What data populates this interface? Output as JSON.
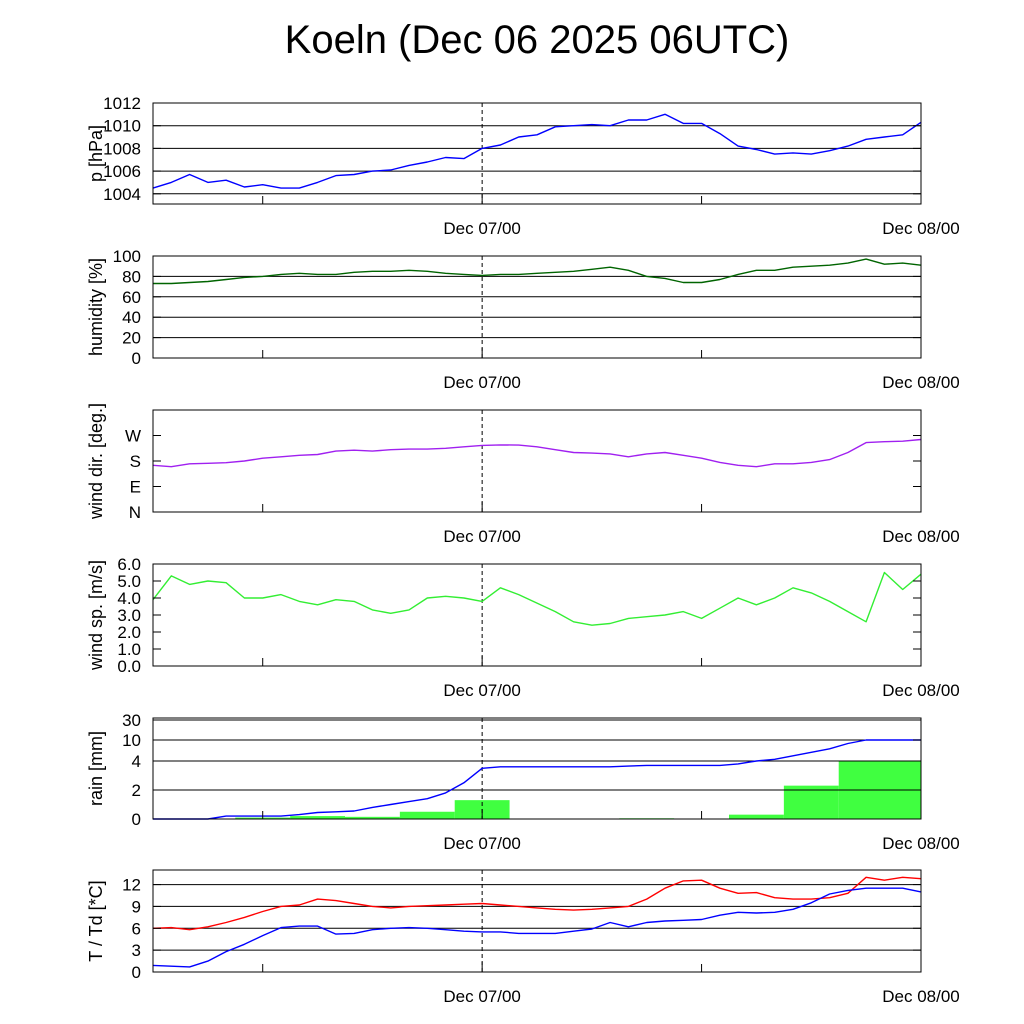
{
  "chart_data": {
    "type": "line",
    "title": "Koeln (Dec 06 2025 06UTC)",
    "x_unit": "hours since Dec 06 06UTC",
    "xlim": [
      0,
      42
    ],
    "x_tick_labels": [
      {
        "hour": 18,
        "label": "Dec 07/00"
      },
      {
        "hour": 42,
        "label": "Dec 08/00"
      }
    ],
    "x_minor_ticks": [
      6,
      30
    ],
    "x_hours": [
      0,
      1,
      2,
      3,
      4,
      5,
      6,
      7,
      8,
      9,
      10,
      11,
      12,
      13,
      14,
      15,
      16,
      17,
      18,
      19,
      20,
      21,
      22,
      23,
      24,
      25,
      26,
      27,
      28,
      29,
      30,
      31,
      32,
      33,
      34,
      35,
      36,
      37,
      38,
      39,
      40,
      41,
      42
    ],
    "panels": [
      {
        "id": "pressure",
        "ylabel": "p [hPa]",
        "ylim": [
          1003.1,
          1012
        ],
        "ticks": [
          {
            "v": 1004,
            "label": "1004"
          },
          {
            "v": 1006,
            "label": "1006"
          },
          {
            "v": 1008,
            "label": "1008"
          },
          {
            "v": 1010,
            "label": "1010"
          },
          {
            "v": 1012,
            "label": "1012"
          }
        ],
        "grid": [
          1004,
          1006,
          1008,
          1010
        ],
        "series": [
          {
            "name": "pressure",
            "color": "#0000ff",
            "values": [
              1004.5,
              1005.0,
              1005.7,
              1005.0,
              1005.2,
              1004.6,
              1004.8,
              1004.5,
              1004.5,
              1005.0,
              1005.6,
              1005.7,
              1006.0,
              1006.1,
              1006.5,
              1006.8,
              1007.2,
              1007.1,
              1008.0,
              1008.3,
              1009.0,
              1009.2,
              1009.9,
              1010.0,
              1010.1,
              1010.0,
              1010.5,
              1010.5,
              1011.0,
              1010.2,
              1010.2,
              1009.3,
              1008.2,
              1007.9,
              1007.5,
              1007.6,
              1007.5,
              1007.8,
              1008.2,
              1008.8,
              1009.0,
              1009.2,
              1010.3
            ]
          }
        ]
      },
      {
        "id": "humidity",
        "ylabel": "humidity [%]",
        "ylim": [
          0,
          100
        ],
        "ticks": [
          {
            "v": 0,
            "label": "0"
          },
          {
            "v": 20,
            "label": "20"
          },
          {
            "v": 40,
            "label": "40"
          },
          {
            "v": 60,
            "label": "60"
          },
          {
            "v": 80,
            "label": "80"
          },
          {
            "v": 100,
            "label": "100"
          }
        ],
        "grid": [
          20,
          40,
          60,
          80
        ],
        "series": [
          {
            "name": "humidity",
            "color": "#006400",
            "values": [
              73,
              73,
              74,
              75,
              77,
              79,
              80,
              82,
              83,
              82,
              82,
              84,
              85,
              85,
              86,
              85,
              83,
              82,
              81,
              82,
              82,
              83,
              84,
              85,
              87,
              89,
              86,
              80,
              78,
              74,
              74,
              77,
              82,
              86,
              86,
              89,
              90,
              91,
              93,
              97,
              92,
              93,
              91
            ]
          }
        ]
      },
      {
        "id": "wind_dir",
        "ylabel": "wind dir. [deg.]",
        "ylim": [
          0,
          360
        ],
        "ticks": [
          {
            "v": 0,
            "label": "N"
          },
          {
            "v": 90,
            "label": "E"
          },
          {
            "v": 180,
            "label": "S"
          },
          {
            "v": 270,
            "label": "W"
          }
        ],
        "grid": [],
        "series": [
          {
            "name": "wind direction",
            "color": "#a020f0",
            "values": [
              165,
              160,
              170,
              172,
              174,
              180,
              190,
              195,
              200,
              203,
              215,
              218,
              215,
              220,
              222,
              222,
              225,
              230,
              235,
              237,
              236,
              230,
              220,
              210,
              208,
              205,
              195,
              205,
              210,
              200,
              190,
              175,
              165,
              160,
              170,
              170,
              175,
              185,
              210,
              245,
              248,
              250,
              256
            ]
          }
        ]
      },
      {
        "id": "wind_speed",
        "ylabel": "wind sp. [m/s]",
        "ylim": [
          0,
          6
        ],
        "ticks": [
          {
            "v": 0,
            "label": "0.0"
          },
          {
            "v": 1,
            "label": "1.0"
          },
          {
            "v": 2,
            "label": "2.0"
          },
          {
            "v": 3,
            "label": "3.0"
          },
          {
            "v": 4,
            "label": "4.0"
          },
          {
            "v": 5,
            "label": "5.0"
          },
          {
            "v": 6,
            "label": "6.0"
          }
        ],
        "grid": [],
        "series": [
          {
            "name": "wind speed",
            "color": "#33ee33",
            "values": [
              3.9,
              5.3,
              4.8,
              5.0,
              4.9,
              4.0,
              4.0,
              4.2,
              3.8,
              3.6,
              3.9,
              3.8,
              3.3,
              3.1,
              3.3,
              4.0,
              4.1,
              4.0,
              3.8,
              4.6,
              4.2,
              3.7,
              3.2,
              2.6,
              2.4,
              2.5,
              2.8,
              2.9,
              3.0,
              3.2,
              2.8,
              3.4,
              4.0,
              3.6,
              4.0,
              4.6,
              4.3,
              3.8,
              3.2,
              2.6,
              5.5,
              4.5,
              5.4
            ]
          }
        ]
      },
      {
        "id": "rain",
        "ylabel": "rain [mm]",
        "scale": "piecewise",
        "ticks": [
          {
            "v": 0,
            "label": "0"
          },
          {
            "v": 2,
            "label": "2"
          },
          {
            "v": 4,
            "label": "4"
          },
          {
            "v": 10,
            "label": "10"
          },
          {
            "v": 30,
            "label": "30"
          }
        ],
        "grid": [
          2,
          4,
          10,
          30
        ],
        "bars": {
          "name": "3h precipitation",
          "color": "#40ff40",
          "bins": [
            [
              4.5,
              7.5,
              0.1
            ],
            [
              7.5,
              10.5,
              0.2
            ],
            [
              10.5,
              13.5,
              0.15
            ],
            [
              13.5,
              16.5,
              0.5
            ],
            [
              16.5,
              19.5,
              1.3
            ],
            [
              25.5,
              28.5,
              0.05
            ],
            [
              31.5,
              34.5,
              0.3
            ],
            [
              34.5,
              37.5,
              2.3
            ],
            [
              37.5,
              42,
              4.0
            ]
          ]
        },
        "series": [
          {
            "name": "accumulated rain",
            "color": "#0000ff",
            "values": [
              0,
              0,
              0,
              0,
              0.2,
              0.2,
              0.2,
              0.2,
              0.3,
              0.45,
              0.5,
              0.55,
              0.8,
              1.0,
              1.2,
              1.4,
              1.8,
              2.5,
              3.5,
              3.6,
              3.6,
              3.6,
              3.6,
              3.6,
              3.6,
              3.6,
              3.65,
              3.7,
              3.7,
              3.7,
              3.7,
              3.7,
              3.8,
              4.0,
              4.5,
              5.5,
              6.5,
              7.5,
              9.0,
              10,
              10,
              10,
              10
            ]
          }
        ]
      },
      {
        "id": "temperature",
        "ylabel": "T / Td [*C]",
        "ylim": [
          0,
          14
        ],
        "ticks": [
          {
            "v": 0,
            "label": "0"
          },
          {
            "v": 3,
            "label": "3"
          },
          {
            "v": 6,
            "label": "6"
          },
          {
            "v": 9,
            "label": "9"
          },
          {
            "v": 12,
            "label": "12"
          }
        ],
        "grid": [
          3,
          6,
          9,
          12
        ],
        "series": [
          {
            "name": "T",
            "color": "#ff0000",
            "values": [
              6.0,
              6.1,
              5.8,
              6.2,
              6.8,
              7.5,
              8.3,
              9.0,
              9.2,
              10.0,
              9.8,
              9.4,
              9.0,
              8.8,
              9.0,
              9.1,
              9.2,
              9.3,
              9.4,
              9.2,
              9.0,
              8.8,
              8.6,
              8.5,
              8.6,
              8.8,
              9.0,
              10.0,
              11.5,
              12.5,
              12.6,
              11.5,
              10.8,
              10.9,
              10.2,
              10.0,
              10.0,
              10.2,
              10.8,
              13.0,
              12.6,
              13.0,
              12.8
            ]
          },
          {
            "name": "Td",
            "color": "#0000ff",
            "values": [
              0.9,
              0.8,
              0.7,
              1.5,
              2.8,
              3.8,
              5.0,
              6.1,
              6.3,
              6.3,
              5.2,
              5.3,
              5.8,
              6.0,
              6.1,
              6.0,
              5.8,
              5.6,
              5.5,
              5.5,
              5.3,
              5.3,
              5.3,
              5.6,
              5.9,
              6.8,
              6.2,
              6.8,
              7.0,
              7.1,
              7.2,
              7.8,
              8.2,
              8.1,
              8.2,
              8.6,
              9.5,
              10.7,
              11.2,
              11.5,
              11.5,
              11.5,
              11.0
            ]
          }
        ]
      }
    ]
  }
}
